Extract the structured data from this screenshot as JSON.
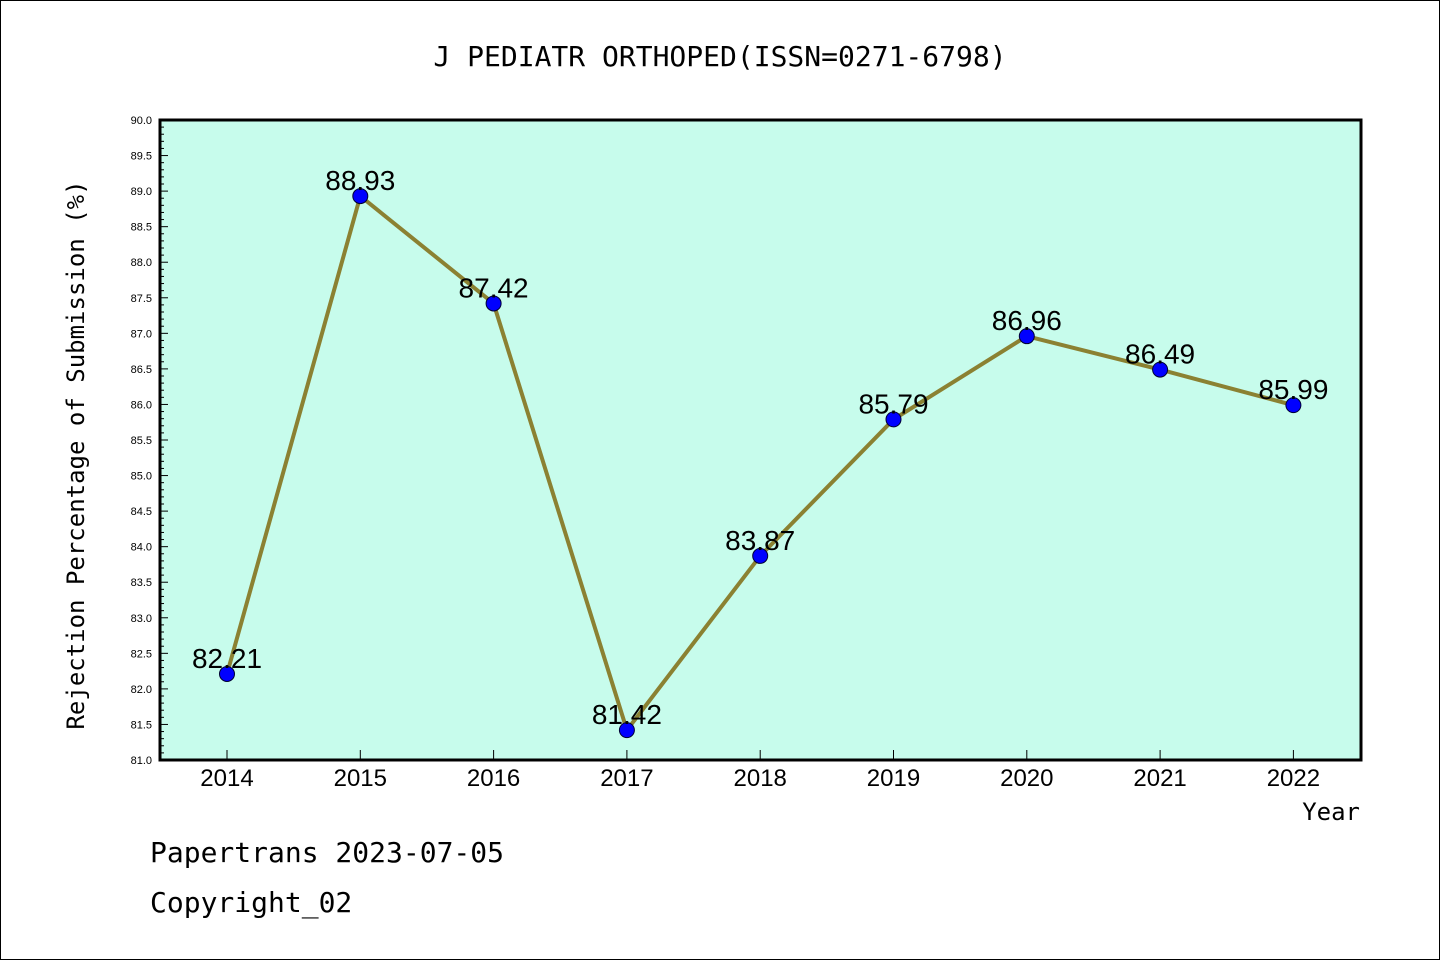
{
  "chart_data": {
    "type": "line",
    "title": "J PEDIATR ORTHOPED(ISSN=0271-6798)",
    "xlabel": "Year",
    "ylabel": "Rejection Percentage of Submission (%)",
    "categories": [
      "2014",
      "2015",
      "2016",
      "2017",
      "2018",
      "2019",
      "2020",
      "2021",
      "2022"
    ],
    "values": [
      82.21,
      88.93,
      87.42,
      81.42,
      83.87,
      85.79,
      86.96,
      86.49,
      85.99
    ],
    "data_labels": [
      "82.21",
      "88.93",
      "87.42",
      "81.42",
      "83.87",
      "85.79",
      "86.96",
      "86.49",
      "85.99"
    ],
    "ylim": [
      81.0,
      90.0
    ],
    "yticks": [
      "81.0",
      "81.5",
      "82.0",
      "82.5",
      "83.0",
      "83.5",
      "84.0",
      "84.5",
      "85.0",
      "85.5",
      "86.0",
      "86.5",
      "87.0",
      "87.5",
      "88.0",
      "88.5",
      "89.0",
      "89.5",
      "90.0"
    ],
    "grid": false,
    "colors": {
      "plot_background": "#c7fcec",
      "line": "#8b8132",
      "marker": "#0000ff"
    }
  },
  "footer": {
    "source": "Papertrans 2023-07-05",
    "copyright": "Copyright_02"
  }
}
